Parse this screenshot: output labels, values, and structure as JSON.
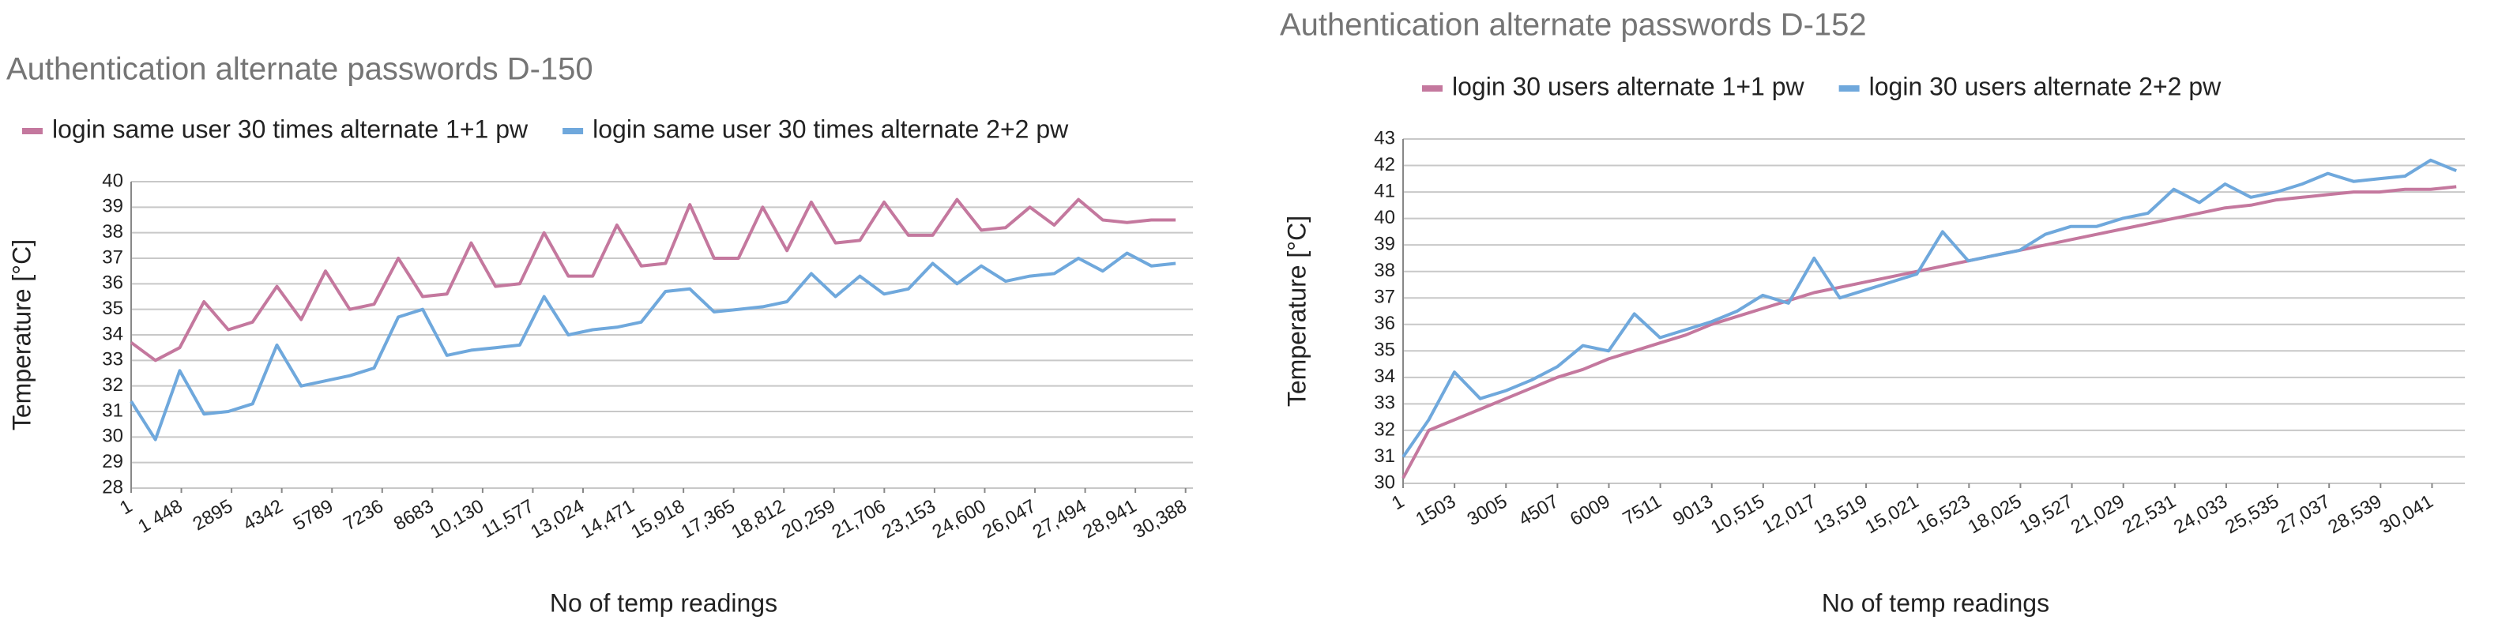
{
  "chart_data": [
    {
      "type": "line",
      "title": "Authentication alternate passwords D-150",
      "x_label": "No of temp readings",
      "y_label": "Temperature  [°C]",
      "x": [
        1,
        701,
        1401,
        2101,
        2801,
        3501,
        4201,
        4901,
        5601,
        6301,
        7001,
        7701,
        8401,
        9101,
        9801,
        10501,
        11201,
        11901,
        12601,
        13301,
        14001,
        14701,
        15401,
        16101,
        16801,
        17501,
        18201,
        18901,
        19601,
        20301,
        21001,
        21701,
        22401,
        23101,
        23801,
        24501,
        25201,
        25901,
        26601,
        27301,
        28001,
        28701,
        29401,
        30101
      ],
      "series": [
        {
          "name": "login same user 30 times alternate 1+1 pw",
          "color": "#c4789e",
          "values": [
            33.7,
            33.0,
            33.5,
            35.3,
            34.2,
            34.5,
            35.9,
            34.6,
            36.5,
            35.0,
            35.2,
            37.0,
            35.5,
            35.6,
            37.6,
            35.9,
            36.0,
            38.0,
            36.3,
            36.3,
            38.3,
            36.7,
            36.8,
            39.1,
            37.0,
            37.0,
            39.0,
            37.3,
            39.2,
            37.6,
            37.7,
            39.2,
            37.9,
            37.9,
            39.3,
            38.1,
            38.2,
            39.0,
            38.3,
            39.3,
            38.5,
            38.4,
            38.5,
            38.5
          ]
        },
        {
          "name": "login same user 30 times alternate 2+2 pw",
          "color": "#6fa8dc",
          "values": [
            31.4,
            29.9,
            32.6,
            30.9,
            31.0,
            31.3,
            33.6,
            32.0,
            32.2,
            32.4,
            32.7,
            34.7,
            35.0,
            33.2,
            33.4,
            33.5,
            33.6,
            35.5,
            34.0,
            34.2,
            34.3,
            34.5,
            35.7,
            35.8,
            34.9,
            35.0,
            35.1,
            35.3,
            36.4,
            35.5,
            36.3,
            35.6,
            35.8,
            36.8,
            36.0,
            36.7,
            36.1,
            36.3,
            36.4,
            37.0,
            36.5,
            37.2,
            36.7,
            36.8
          ]
        }
      ],
      "xlim": [
        1,
        30600
      ],
      "xticks": [
        1,
        {
          "value": 1448,
          "label": "1 448"
        },
        2895,
        4342,
        5789,
        7236,
        8683,
        {
          "value": 10130,
          "label": "10,130"
        },
        {
          "value": 11577,
          "label": "11,577"
        },
        {
          "value": 13024,
          "label": "13,024"
        },
        {
          "value": 14471,
          "label": "14,471"
        },
        {
          "value": 15918,
          "label": "15,918"
        },
        {
          "value": 17365,
          "label": "17,365"
        },
        {
          "value": 18812,
          "label": "18,812"
        },
        {
          "value": 20259,
          "label": "20,259"
        },
        {
          "value": 21706,
          "label": "21,706"
        },
        {
          "value": 23153,
          "label": "23,153"
        },
        {
          "value": 24600,
          "label": "24,600"
        },
        {
          "value": 26047,
          "label": "26,047"
        },
        {
          "value": 27494,
          "label": "27,494"
        },
        {
          "value": 28941,
          "label": "28,941"
        },
        {
          "value": 30388,
          "label": "30,388"
        }
      ],
      "ylim": [
        28,
        40
      ],
      "yticks": [
        28,
        29,
        30,
        31,
        32,
        33,
        34,
        35,
        36,
        37,
        38,
        39,
        40
      ],
      "grid": true
    },
    {
      "type": "line",
      "title": "Authentication alternate passwords D-152",
      "x_label": "No of temp readings",
      "y_label": "Temperature  [°C]",
      "x": [
        1,
        751,
        1501,
        2251,
        3001,
        3751,
        4501,
        5251,
        6001,
        6751,
        7501,
        8251,
        9001,
        9751,
        10501,
        11251,
        12001,
        12751,
        13501,
        14251,
        15001,
        15751,
        16501,
        17251,
        18001,
        18751,
        19501,
        20251,
        21001,
        21751,
        22501,
        23251,
        24001,
        24751,
        25501,
        26251,
        27001,
        27751,
        28501,
        29251,
        30001,
        30751
      ],
      "series": [
        {
          "name": "login 30 users alternate 1+1 pw",
          "color": "#c4789e",
          "values": [
            30.2,
            32.0,
            32.4,
            32.8,
            33.2,
            33.6,
            34.0,
            34.3,
            34.7,
            35.0,
            35.3,
            35.6,
            36.0,
            36.3,
            36.6,
            36.9,
            37.2,
            37.4,
            37.6,
            37.8,
            38.0,
            38.2,
            38.4,
            38.6,
            38.8,
            39.0,
            39.2,
            39.4,
            39.6,
            39.8,
            40.0,
            40.2,
            40.4,
            40.5,
            40.7,
            40.8,
            40.9,
            41.0,
            41.0,
            41.1,
            41.1,
            41.2
          ]
        },
        {
          "name": "login 30 users alternate 2+2 pw",
          "color": "#6fa8dc",
          "values": [
            31.0,
            32.4,
            34.2,
            33.2,
            33.5,
            33.9,
            34.4,
            35.2,
            35.0,
            36.4,
            35.5,
            35.8,
            36.1,
            36.5,
            37.1,
            36.8,
            38.5,
            37.0,
            37.3,
            37.6,
            37.9,
            39.5,
            38.4,
            38.6,
            38.8,
            39.4,
            39.7,
            39.7,
            40.0,
            40.2,
            41.1,
            40.6,
            41.3,
            40.8,
            41.0,
            41.3,
            41.7,
            41.4,
            41.5,
            41.6,
            42.2,
            41.8
          ]
        }
      ],
      "xlim": [
        1,
        31000
      ],
      "xticks": [
        1,
        1503,
        3005,
        4507,
        6009,
        7511,
        9013,
        {
          "value": 10515,
          "label": "10,515"
        },
        {
          "value": 12017,
          "label": "12,017"
        },
        {
          "value": 13519,
          "label": "13,519"
        },
        {
          "value": 15021,
          "label": "15,021"
        },
        {
          "value": 16523,
          "label": "16,523"
        },
        {
          "value": 18025,
          "label": "18,025"
        },
        {
          "value": 19527,
          "label": "19,527"
        },
        {
          "value": 21029,
          "label": "21,029"
        },
        {
          "value": 22531,
          "label": "22,531"
        },
        {
          "value": 24033,
          "label": "24,033"
        },
        {
          "value": 25535,
          "label": "25,535"
        },
        {
          "value": 27037,
          "label": "27,037"
        },
        {
          "value": 28539,
          "label": "28,539"
        },
        {
          "value": 30041,
          "label": "30,041"
        }
      ],
      "ylim": [
        30,
        43
      ],
      "yticks": [
        30,
        31,
        32,
        33,
        34,
        35,
        36,
        37,
        38,
        39,
        40,
        41,
        42,
        43
      ],
      "grid": true
    }
  ]
}
